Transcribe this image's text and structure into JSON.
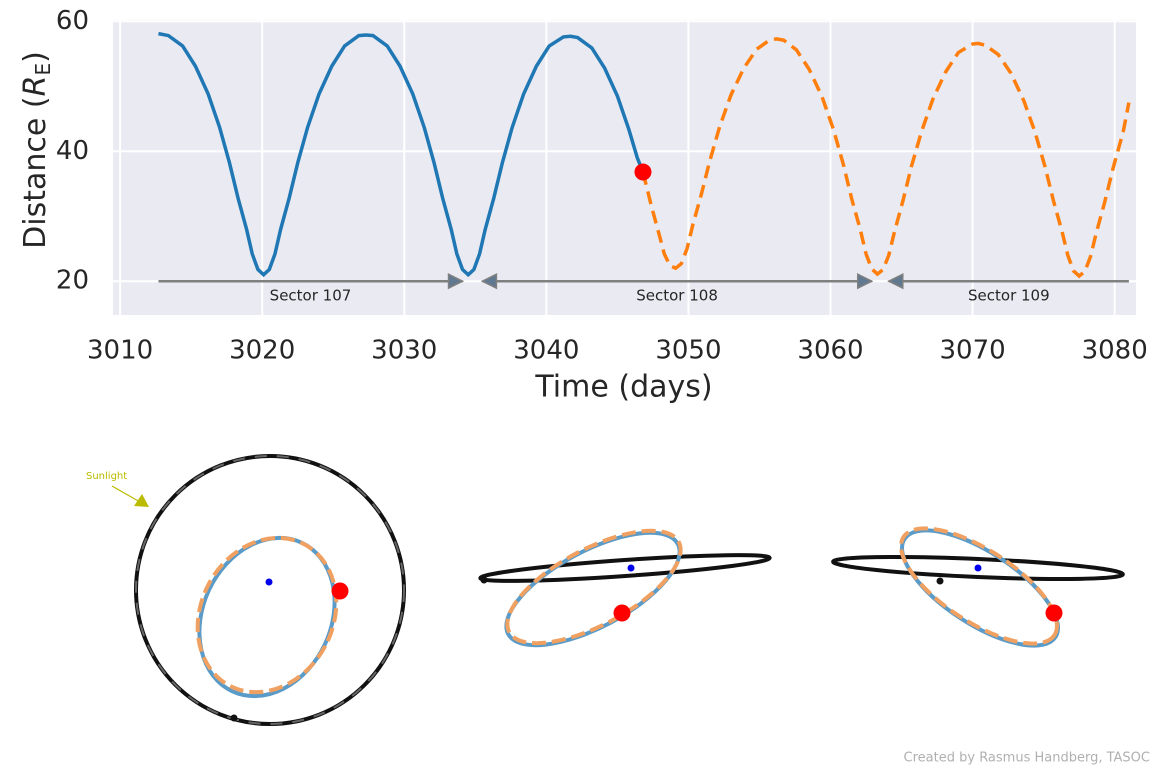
{
  "chart_data": {
    "type": "line",
    "xlabel": "Time (days)",
    "ylabel": {
      "text": "Distance (",
      "var": "R",
      "sub": "E",
      "end": ")"
    },
    "xlim": [
      3009.5,
      3081.5
    ],
    "ylim": [
      14.8,
      60.2
    ],
    "xticks": [
      3010,
      3020,
      3030,
      3040,
      3050,
      3060,
      3070,
      3080
    ],
    "yticks": [
      20,
      40,
      60
    ],
    "grid": true,
    "series": [
      {
        "color": "#1f77b4",
        "dash": false,
        "x": [
          3012.7,
          3013.4,
          3014.4,
          3015.3,
          3016.2,
          3017.0,
          3017.7,
          3018.3,
          3018.9,
          3019.3,
          3019.7,
          3020.1,
          3020.5,
          3020.9,
          3021.3,
          3021.9,
          3022.5,
          3023.2,
          3024.0,
          3024.9,
          3025.8,
          3026.8,
          3027.3,
          3027.8,
          3028.8,
          3029.7,
          3030.6,
          3031.4,
          3032.1,
          3032.7,
          3033.3,
          3033.7,
          3034.1,
          3034.5,
          3034.9,
          3035.3,
          3035.7,
          3036.3,
          3036.9,
          3037.6,
          3038.4,
          3039.3,
          3040.2,
          3041.2,
          3041.7,
          3042.2,
          3043.2,
          3044.1,
          3045.0,
          3045.8,
          3046.4,
          3046.8
        ],
        "values": [
          58.1,
          57.8,
          56.2,
          53.1,
          48.8,
          43.7,
          38.2,
          32.8,
          28,
          24.2,
          21.8,
          21,
          21.8,
          24.2,
          28,
          32.8,
          38.2,
          43.7,
          48.8,
          53.1,
          56.2,
          57.8,
          57.9,
          57.8,
          56.2,
          53.1,
          48.8,
          43.7,
          38.2,
          32.8,
          28,
          24.2,
          21.8,
          21,
          21.8,
          24.2,
          28,
          32.8,
          38.2,
          43.7,
          48.8,
          53.1,
          56.2,
          57.6,
          57.7,
          57.5,
          55.9,
          52.8,
          48.5,
          43.4,
          39,
          36.8
        ]
      },
      {
        "color": "#ff7f0e",
        "dash": true,
        "x": [
          3046.8,
          3047.4,
          3047.9,
          3048.3,
          3048.7,
          3049.1,
          3049.5,
          3049.9,
          3050.3,
          3050.9,
          3051.5,
          3052.2,
          3053.0,
          3053.9,
          3054.8,
          3055.7,
          3056.2,
          3056.7,
          3057.6,
          3058.5,
          3059.4,
          3060.2,
          3060.9,
          3061.5,
          3062.1,
          3062.5,
          3062.9,
          3063.3,
          3063.7,
          3064.1,
          3064.5,
          3065.1,
          3065.7,
          3066.4,
          3067.2,
          3068.1,
          3069.0,
          3070.0,
          3070.4,
          3070.9,
          3071.8,
          3072.7,
          3073.6,
          3074.4,
          3075.1,
          3075.7,
          3076.3,
          3076.7,
          3077.1,
          3077.5,
          3077.9,
          3078.3,
          3078.7,
          3079.3,
          3079.9,
          3080.6,
          3081.0
        ],
        "values": [
          36.8,
          31.5,
          27.5,
          24.2,
          22.4,
          22,
          22.7,
          25,
          28.6,
          33.3,
          38.5,
          43.8,
          48.7,
          52.8,
          55.7,
          57.1,
          57.3,
          57.1,
          55.6,
          52.6,
          48.4,
          43.4,
          38,
          32.6,
          27.9,
          24.2,
          21.9,
          21.1,
          21.8,
          24,
          27.6,
          32.4,
          37.7,
          43,
          48,
          52.2,
          55.2,
          56.5,
          56.6,
          56.3,
          54.9,
          52,
          47.8,
          42.9,
          37.6,
          32.3,
          27.6,
          24,
          21.6,
          20.8,
          21.5,
          23.8,
          27.4,
          32.2,
          37.5,
          43,
          47.5
        ]
      }
    ],
    "marker": {
      "x": 3046.8,
      "y": 36.8,
      "color": "#ff0000"
    },
    "sectors": {
      "y": 20,
      "color": "#808080",
      "items": [
        {
          "label": "Sector 107",
          "start": 3012.7,
          "end": 3034.1
        },
        {
          "label": "Sector 108",
          "start": 3035.5,
          "end": 3062.9
        },
        {
          "label": "Sector 109",
          "start": 3064.1,
          "end": 3081.0
        }
      ]
    }
  },
  "orbit_panels": {
    "sunlight_label": "Sunlight"
  },
  "credit": "Created by Rasmus Handberg, TASOC"
}
